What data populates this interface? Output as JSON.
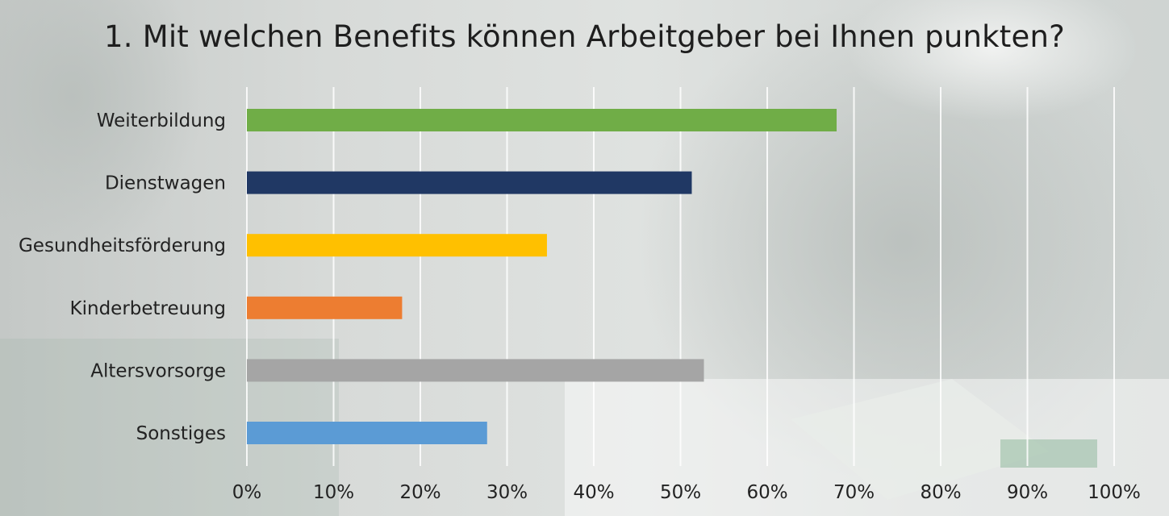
{
  "chart_data": {
    "type": "bar",
    "orientation": "horizontal",
    "title": "1. Mit welchen Benefits können Arbeitgeber bei Ihnen punkten?",
    "categories": [
      "Weiterbildung",
      "Dienstwagen",
      "Gesundheitsförderung",
      "Kinderbetreuung",
      "Altersvorsorge",
      "Sonstiges"
    ],
    "values": [
      68,
      51.3,
      34.6,
      17.9,
      52.7,
      27.7
    ],
    "colors": [
      "#70ad47",
      "#203864",
      "#ffc000",
      "#ed7d31",
      "#a5a5a5",
      "#5b9bd5"
    ],
    "xlim": [
      0,
      100
    ],
    "x_ticks": [
      "0%",
      "10%",
      "20%",
      "30%",
      "40%",
      "50%",
      "60%",
      "70%",
      "80%",
      "90%",
      "100%"
    ],
    "xlabel": "",
    "ylabel": "",
    "grid": true,
    "legend": "none"
  }
}
